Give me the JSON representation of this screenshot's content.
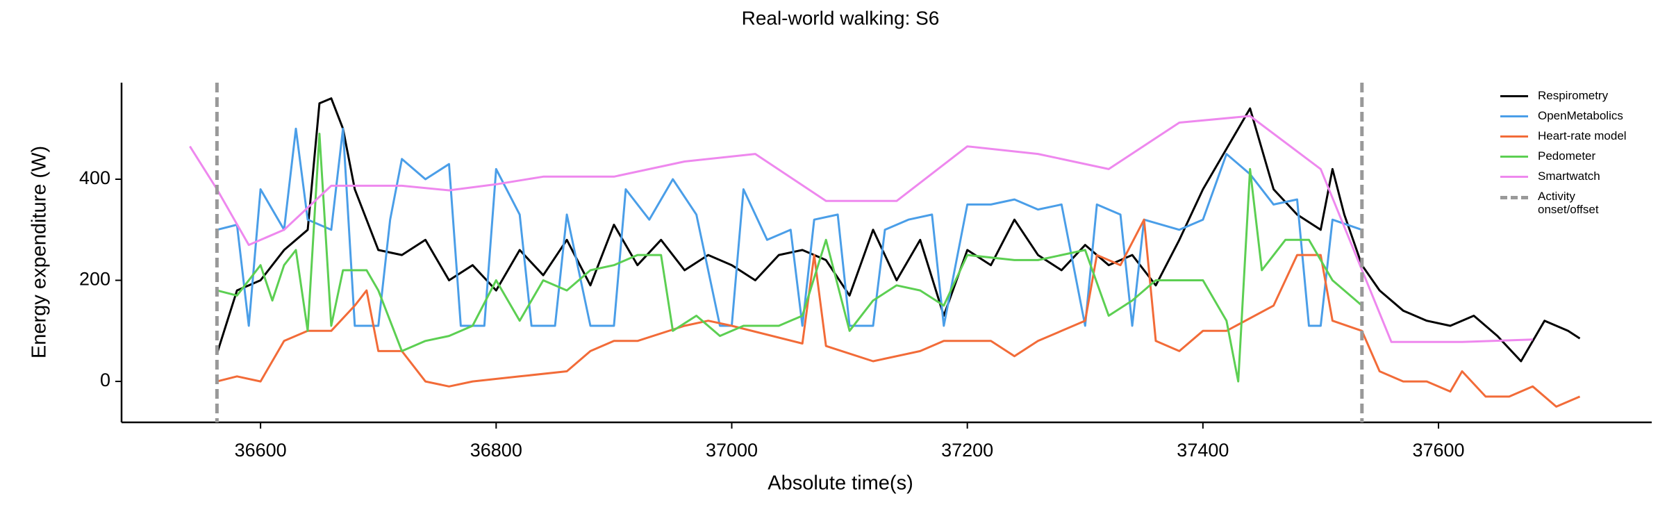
{
  "chart_data": {
    "type": "line",
    "title": "Real-world walking: S6",
    "xlabel": "Absolute time(s)",
    "ylabel": "Energy expenditure (W)",
    "xlim": [
      36482,
      37781
    ],
    "ylim": [
      -81,
      591
    ],
    "xticks": [
      36600,
      36800,
      37000,
      37200,
      37400,
      37600
    ],
    "yticks": [
      0,
      200,
      400
    ],
    "grid": false,
    "legend_position": "upper right",
    "vlines": [
      36563,
      37535
    ],
    "vline_label": "Activity onset/offset",
    "vline_color": "#999999",
    "series": [
      {
        "name": "Respirometry",
        "color": "#000000",
        "x": [
          36563,
          36580,
          36600,
          36620,
          36640,
          36650,
          36660,
          36670,
          36680,
          36700,
          36720,
          36740,
          36760,
          36780,
          36800,
          36820,
          36840,
          36860,
          36880,
          36900,
          36920,
          36940,
          36960,
          36980,
          37000,
          37020,
          37040,
          37060,
          37080,
          37100,
          37120,
          37140,
          37160,
          37180,
          37200,
          37220,
          37240,
          37260,
          37280,
          37300,
          37320,
          37340,
          37360,
          37380,
          37400,
          37420,
          37440,
          37460,
          37480,
          37500,
          37510,
          37520,
          37535,
          37550,
          37570,
          37590,
          37610,
          37630,
          37650,
          37670,
          37690,
          37710,
          37720
        ],
        "values": [
          55,
          180,
          200,
          260,
          300,
          550,
          560,
          500,
          380,
          260,
          250,
          280,
          200,
          230,
          180,
          260,
          210,
          280,
          190,
          310,
          230,
          280,
          220,
          250,
          230,
          200,
          250,
          260,
          240,
          170,
          300,
          200,
          280,
          130,
          260,
          230,
          320,
          250,
          220,
          270,
          230,
          250,
          190,
          280,
          380,
          460,
          540,
          380,
          330,
          300,
          420,
          330,
          230,
          180,
          140,
          120,
          110,
          130,
          90,
          40,
          120,
          100,
          85
        ]
      },
      {
        "name": "OpenMetabolics",
        "color": "#4a9ee8",
        "x": [
          36563,
          36580,
          36590,
          36600,
          36620,
          36630,
          36640,
          36660,
          36670,
          36680,
          36700,
          36710,
          36720,
          36740,
          36760,
          36770,
          36790,
          36800,
          36820,
          36830,
          36850,
          36860,
          36880,
          36900,
          36910,
          36930,
          36950,
          36970,
          36990,
          37000,
          37010,
          37030,
          37050,
          37060,
          37070,
          37090,
          37100,
          37120,
          37130,
          37150,
          37170,
          37180,
          37200,
          37220,
          37240,
          37260,
          37280,
          37300,
          37310,
          37330,
          37340,
          37350,
          37380,
          37400,
          37420,
          37440,
          37460,
          37480,
          37490,
          37500,
          37510,
          37535
        ],
        "values": [
          300,
          310,
          110,
          380,
          300,
          500,
          320,
          300,
          500,
          110,
          110,
          320,
          440,
          400,
          430,
          110,
          110,
          420,
          330,
          110,
          110,
          330,
          110,
          110,
          380,
          320,
          400,
          330,
          110,
          110,
          380,
          280,
          300,
          110,
          320,
          330,
          110,
          110,
          300,
          320,
          330,
          110,
          350,
          350,
          360,
          340,
          350,
          110,
          350,
          330,
          110,
          320,
          300,
          320,
          450,
          410,
          350,
          360,
          110,
          110,
          320,
          300
        ]
      },
      {
        "name": "Heart-rate model",
        "color": "#f26b38",
        "x": [
          36563,
          36580,
          36600,
          36620,
          36640,
          36660,
          36680,
          36690,
          36700,
          36720,
          36740,
          36760,
          36780,
          36820,
          36860,
          36880,
          36900,
          36920,
          36960,
          36980,
          37000,
          37060,
          37070,
          37080,
          37120,
          37160,
          37180,
          37220,
          37240,
          37260,
          37280,
          37300,
          37310,
          37330,
          37350,
          37360,
          37380,
          37400,
          37420,
          37460,
          37480,
          37500,
          37510,
          37535,
          37550,
          37570,
          37590,
          37610,
          37620,
          37640,
          37660,
          37680,
          37700,
          37720
        ],
        "values": [
          0,
          10,
          0,
          80,
          100,
          100,
          150,
          180,
          60,
          60,
          0,
          -10,
          0,
          10,
          20,
          60,
          80,
          80,
          110,
          120,
          110,
          75,
          250,
          70,
          40,
          60,
          80,
          80,
          50,
          80,
          100,
          120,
          250,
          230,
          320,
          80,
          60,
          100,
          100,
          150,
          250,
          250,
          120,
          100,
          20,
          0,
          0,
          -20,
          20,
          -30,
          -30,
          -10,
          -50,
          -30
        ]
      },
      {
        "name": "Pedometer",
        "color": "#5ccf52",
        "x": [
          36563,
          36580,
          36600,
          36610,
          36620,
          36630,
          36640,
          36650,
          36660,
          36670,
          36690,
          36700,
          36720,
          36740,
          36760,
          36780,
          36800,
          36820,
          36840,
          36860,
          36880,
          36900,
          36920,
          36940,
          36950,
          36970,
          36990,
          37010,
          37040,
          37060,
          37080,
          37100,
          37120,
          37140,
          37160,
          37180,
          37200,
          37240,
          37260,
          37300,
          37320,
          37340,
          37360,
          37380,
          37400,
          37420,
          37430,
          37440,
          37450,
          37470,
          37490,
          37510,
          37535
        ],
        "values": [
          180,
          170,
          230,
          160,
          230,
          260,
          100,
          490,
          110,
          220,
          220,
          180,
          60,
          80,
          90,
          110,
          200,
          120,
          200,
          180,
          220,
          230,
          250,
          250,
          100,
          130,
          90,
          110,
          110,
          130,
          280,
          100,
          160,
          190,
          180,
          150,
          250,
          240,
          240,
          260,
          130,
          160,
          200,
          200,
          200,
          120,
          0,
          420,
          220,
          280,
          280,
          200,
          150
        ]
      },
      {
        "name": "Smartwatch",
        "color": "#ee88ee",
        "x": [
          36540,
          36563,
          36590,
          36620,
          36660,
          36720,
          36760,
          36800,
          36840,
          36900,
          36960,
          37020,
          37080,
          37140,
          37200,
          37260,
          37320,
          37380,
          37440,
          37500,
          37560,
          37620,
          37680
        ],
        "values": [
          465,
          380,
          270,
          300,
          387,
          387,
          378,
          390,
          405,
          405,
          435,
          450,
          357,
          357,
          465,
          450,
          420,
          512,
          525,
          420,
          78,
          78,
          83
        ]
      }
    ]
  }
}
